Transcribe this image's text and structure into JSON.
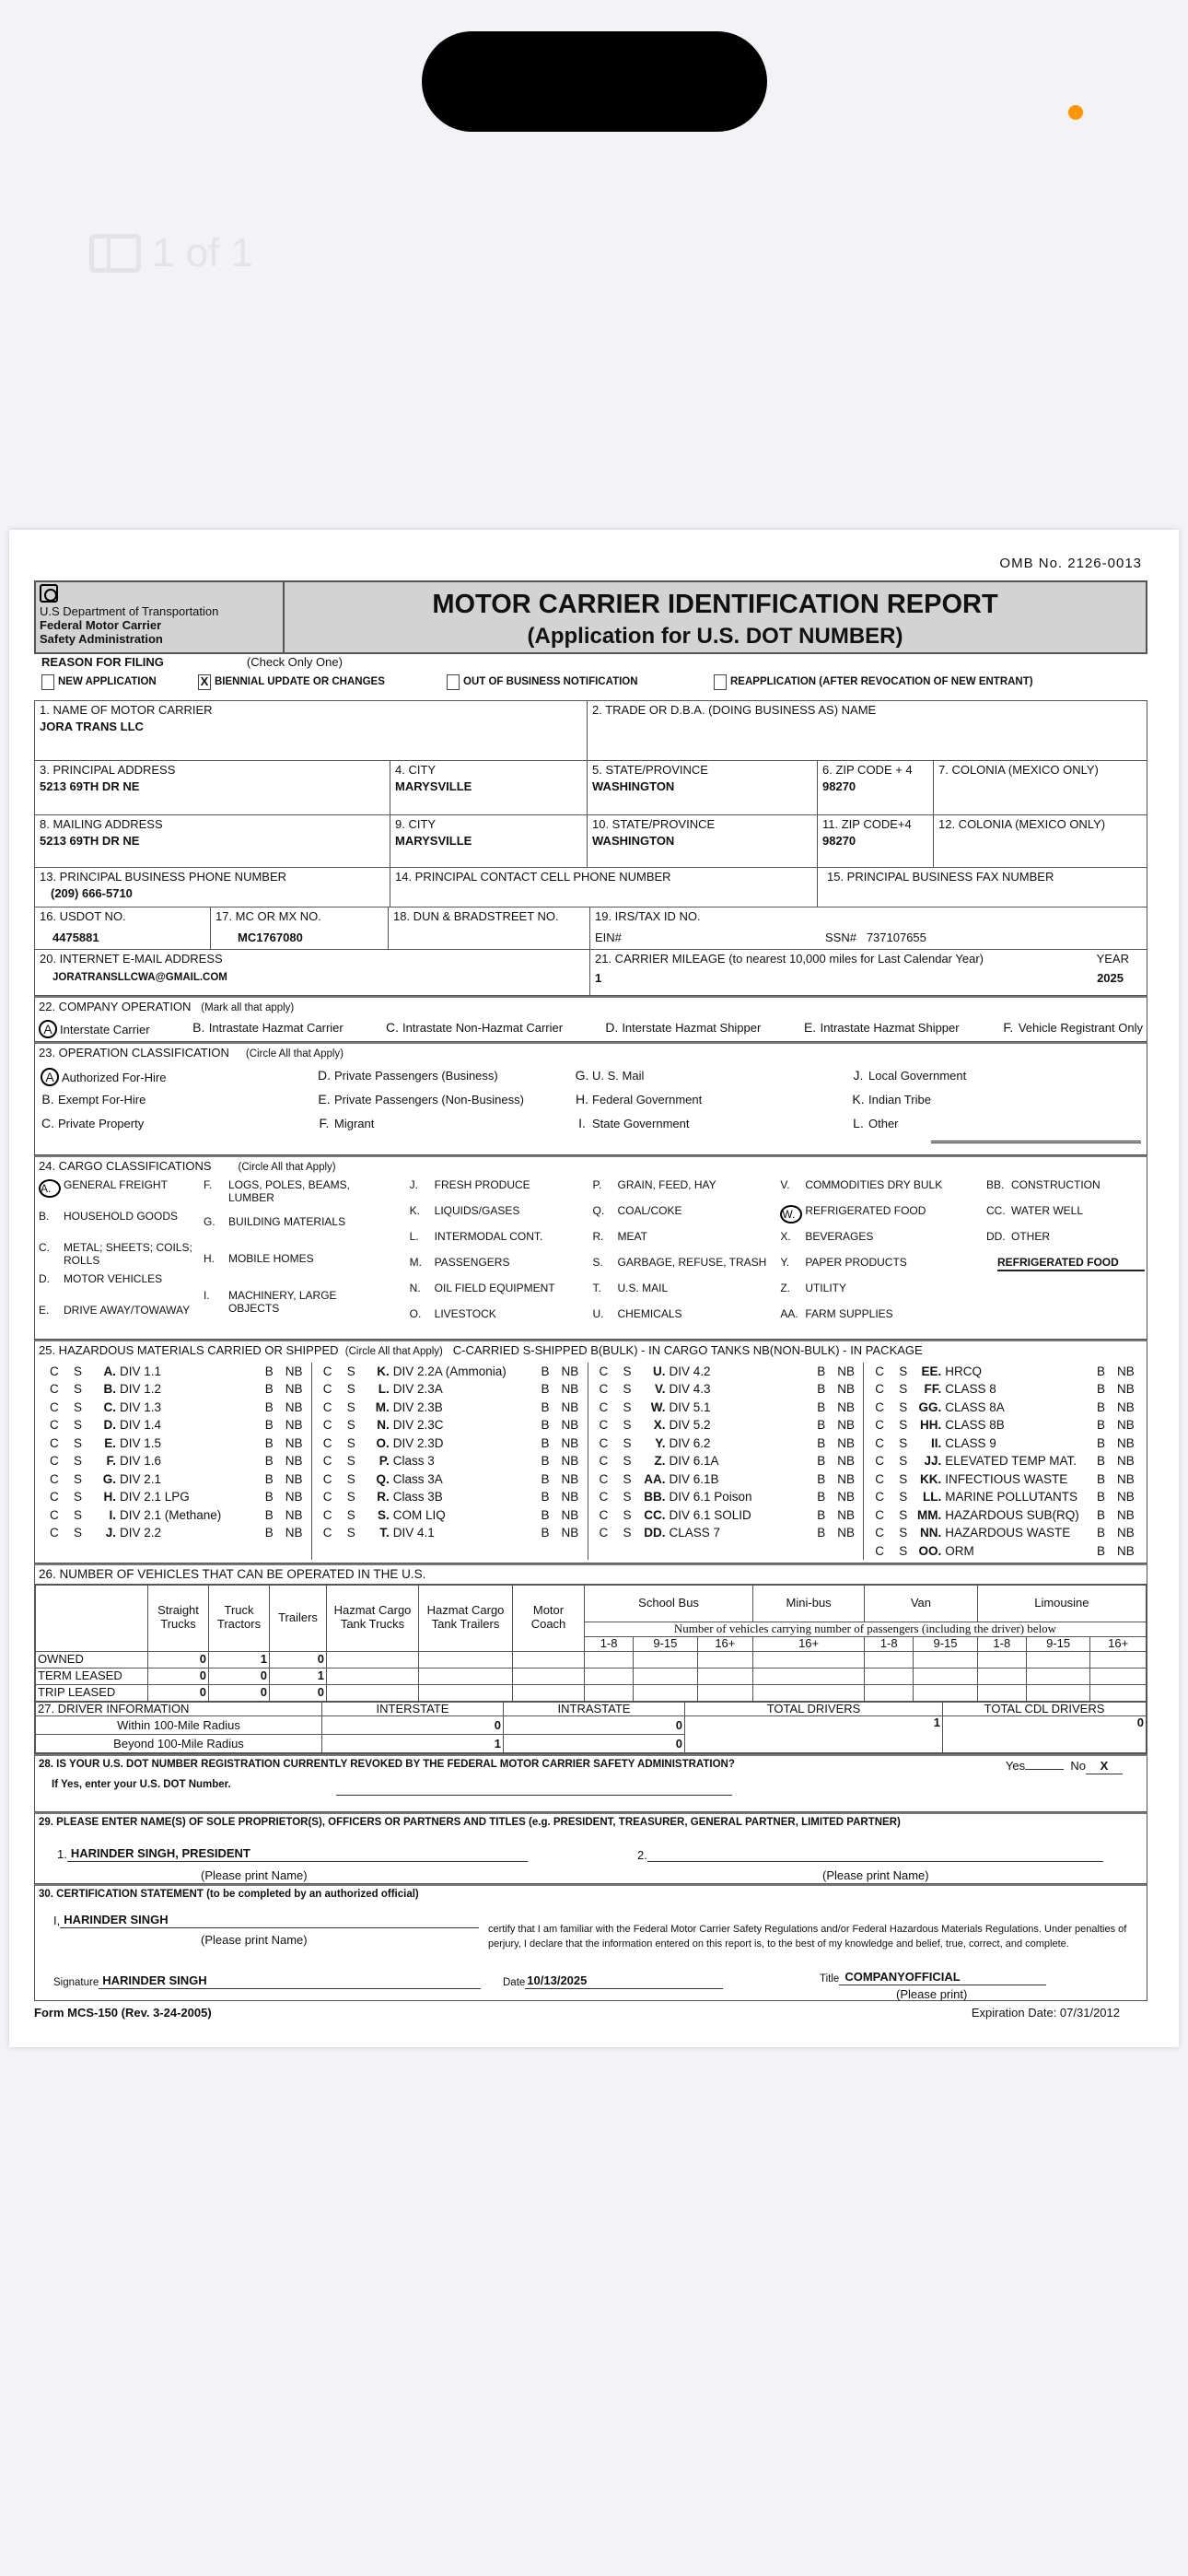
{
  "viewer": {
    "page_indicator": "1 of 1",
    "accent_dot_color": "#ff9500"
  },
  "omb": "OMB No. 2126-0013",
  "header": {
    "dept": [
      "U.S Department of Transportation",
      "Federal Motor Carrier",
      "Safety Administration"
    ],
    "title": "MOTOR CARRIER IDENTIFICATION REPORT",
    "subtitle": "(Application for U.S. DOT NUMBER)"
  },
  "reason": {
    "label": "REASON FOR FILING",
    "note": "(Check Only One)",
    "options": [
      {
        "label": "NEW APPLICATION",
        "mark": ""
      },
      {
        "label": "BIENNIAL UPDATE OR CHANGES",
        "mark": "X"
      },
      {
        "label": "OUT OF BUSINESS NOTIFICATION",
        "mark": ""
      },
      {
        "label": "REAPPLICATION (AFTER REVOCATION OF NEW ENTRANT)",
        "mark": ""
      }
    ]
  },
  "f1": {
    "label": "1. NAME OF MOTOR CARRIER",
    "value": "JORA TRANS LLC"
  },
  "f2": {
    "label": "2. TRADE OR D.B.A. (DOING BUSINESS AS) NAME",
    "value": ""
  },
  "f3": {
    "label": "3. PRINCIPAL ADDRESS",
    "value": "5213 69TH DR NE"
  },
  "f4": {
    "label": "4. CITY",
    "value": "MARYSVILLE"
  },
  "f5": {
    "label": "5. STATE/PROVINCE",
    "value": "WASHINGTON"
  },
  "f6": {
    "label": "6. ZIP CODE + 4",
    "value": "98270"
  },
  "f7": {
    "label": "7. COLONIA (MEXICO ONLY)",
    "value": ""
  },
  "f8": {
    "label": "8. MAILING ADDRESS",
    "value": "5213 69TH DR NE"
  },
  "f9": {
    "label": "9. CITY",
    "value": "MARYSVILLE"
  },
  "f10": {
    "label": "10. STATE/PROVINCE",
    "value": "WASHINGTON"
  },
  "f11": {
    "label": "11. ZIP CODE+4",
    "value": "98270"
  },
  "f12": {
    "label": "12. COLONIA (MEXICO ONLY)",
    "value": ""
  },
  "f13": {
    "label": "13. PRINCIPAL BUSINESS PHONE NUMBER",
    "value": "(209) 666-5710"
  },
  "f14": {
    "label": "14. PRINCIPAL CONTACT CELL PHONE NUMBER",
    "value": ""
  },
  "f15": {
    "label": "15. PRINCIPAL BUSINESS FAX NUMBER",
    "value": ""
  },
  "f16": {
    "label": "16. USDOT NO.",
    "value": "4475881"
  },
  "f17": {
    "label": "17. MC OR MX NO.",
    "value": "MC1767080"
  },
  "f18": {
    "label": "18. DUN & BRADSTREET NO.",
    "value": ""
  },
  "f19": {
    "label": "19. IRS/TAX ID NO.",
    "ein_label": "EIN#",
    "ein": "",
    "ssn_label": "SSN#",
    "ssn": "737107655"
  },
  "f20": {
    "label": "20. INTERNET E-MAIL ADDRESS",
    "value": "JORATRANSLLCWA@GMAIL.COM"
  },
  "f21": {
    "label": "21. CARRIER MILEAGE (to nearest 10,000 miles for Last Calendar Year)",
    "year_label": "YEAR",
    "value": "1",
    "year": "2025"
  },
  "s22": {
    "title": "22. COMPANY OPERATION",
    "note": "(Mark all that apply)",
    "options": [
      {
        "letter": "A",
        "label": "Interstate Carrier",
        "circled": true
      },
      {
        "letter": "B.",
        "label": "Intrastate Hazmat Carrier",
        "circled": false
      },
      {
        "letter": "C.",
        "label": "Intrastate Non-Hazmat Carrier",
        "circled": false
      },
      {
        "letter": "D.",
        "label": "Interstate Hazmat Shipper",
        "circled": false
      },
      {
        "letter": "E.",
        "label": "Intrastate Hazmat Shipper",
        "circled": false
      },
      {
        "letter": "F.",
        "label": "Vehicle Registrant Only",
        "circled": false
      }
    ]
  },
  "s23": {
    "title": "23. OPERATION CLASSIFICATION",
    "note": "(Circle All that Apply)",
    "options": [
      {
        "letter": "A",
        "label": "Authorized For-Hire",
        "circled": true
      },
      {
        "letter": "B.",
        "label": "Exempt For-Hire",
        "circled": false
      },
      {
        "letter": "C.",
        "label": "Private Property",
        "circled": false
      },
      {
        "letter": "D.",
        "label": "Private Passengers (Business)",
        "circled": false
      },
      {
        "letter": "E.",
        "label": "Private Passengers (Non-Business)",
        "circled": false
      },
      {
        "letter": "F.",
        "label": "Migrant",
        "circled": false
      },
      {
        "letter": "G.",
        "label": "U. S. Mail",
        "circled": false
      },
      {
        "letter": "H.",
        "label": "Federal Government",
        "circled": false
      },
      {
        "letter": "I.",
        "label": "State Government",
        "circled": false
      },
      {
        "letter": "J.",
        "label": "Local Government",
        "circled": false
      },
      {
        "letter": "K.",
        "label": "Indian Tribe",
        "circled": false
      },
      {
        "letter": "L.",
        "label": "Other",
        "circled": false
      }
    ]
  },
  "s24": {
    "title": "24. CARGO CLASSIFICATIONS",
    "note": "(Circle All that Apply)",
    "other_value": "REFRIGERATED FOOD",
    "columns": [
      [
        {
          "letter": "A.",
          "label": "GENERAL FREIGHT",
          "circled": true
        },
        {
          "letter": "B.",
          "label": "HOUSEHOLD GOODS"
        },
        {
          "letter": "C.",
          "label": "METAL; SHEETS; COILS; ROLLS"
        },
        {
          "letter": "D.",
          "label": "MOTOR VEHICLES"
        },
        {
          "letter": "E.",
          "label": "DRIVE AWAY/TOWAWAY"
        }
      ],
      [
        {
          "letter": "F.",
          "label": "LOGS, POLES, BEAMS, LUMBER"
        },
        {
          "letter": "G.",
          "label": "BUILDING MATERIALS"
        },
        {
          "letter": "H.",
          "label": "MOBILE HOMES"
        },
        {
          "letter": "I.",
          "label": "MACHINERY, LARGE OBJECTS"
        }
      ],
      [
        {
          "letter": "J.",
          "label": "FRESH PRODUCE"
        },
        {
          "letter": "K.",
          "label": "LIQUIDS/GASES"
        },
        {
          "letter": "L.",
          "label": "INTERMODAL CONT."
        },
        {
          "letter": "M.",
          "label": "PASSENGERS"
        },
        {
          "letter": "N.",
          "label": "OIL FIELD EQUIPMENT"
        },
        {
          "letter": "O.",
          "label": "LIVESTOCK"
        }
      ],
      [
        {
          "letter": "P.",
          "label": "GRAIN, FEED, HAY"
        },
        {
          "letter": "Q.",
          "label": "COAL/COKE"
        },
        {
          "letter": "R.",
          "label": "MEAT"
        },
        {
          "letter": "S.",
          "label": "GARBAGE, REFUSE, TRASH"
        },
        {
          "letter": "T.",
          "label": "U.S. MAIL"
        },
        {
          "letter": "U.",
          "label": "CHEMICALS"
        }
      ],
      [
        {
          "letter": "V.",
          "label": "COMMODITIES DRY BULK"
        },
        {
          "letter": "W.",
          "label": "REFRIGERATED FOOD",
          "circled": true
        },
        {
          "letter": "X.",
          "label": "BEVERAGES"
        },
        {
          "letter": "Y.",
          "label": "PAPER PRODUCTS"
        },
        {
          "letter": "Z.",
          "label": "UTILITY"
        },
        {
          "letter": "AA.",
          "label": "FARM SUPPLIES"
        }
      ],
      [
        {
          "letter": "BB.",
          "label": "CONSTRUCTION"
        },
        {
          "letter": "CC.",
          "label": "WATER WELL"
        },
        {
          "letter": "DD.",
          "label": "OTHER"
        }
      ]
    ]
  },
  "s25": {
    "title": "25. HAZARDOUS MATERIALS CARRIED OR SHIPPED",
    "note": "(Circle All that Apply)",
    "legend": "C-CARRIED  S-SHIPPED  B(BULK) - IN CARGO TANKS  NB(NON-BULK) - IN PACKAGE",
    "c": "C",
    "s": "S",
    "b": "B",
    "nb": "NB",
    "columns": [
      [
        [
          "A.",
          "DIV 1.1"
        ],
        [
          "B.",
          "DIV 1.2"
        ],
        [
          "C.",
          "DIV 1.3"
        ],
        [
          "D.",
          "DIV 1.4"
        ],
        [
          "E.",
          "DIV 1.5"
        ],
        [
          "F.",
          "DIV 1.6"
        ],
        [
          "G.",
          "DIV 2.1"
        ],
        [
          "H.",
          "DIV 2.1 LPG"
        ],
        [
          "I.",
          "DIV 2.1 (Methane)"
        ],
        [
          "J.",
          "DIV 2.2"
        ]
      ],
      [
        [
          "K.",
          "DIV 2.2A (Ammonia)"
        ],
        [
          "L.",
          "DIV 2.3A"
        ],
        [
          "M.",
          "DIV 2.3B"
        ],
        [
          "N.",
          "DIV 2.3C"
        ],
        [
          "O.",
          "DIV 2.3D"
        ],
        [
          "P.",
          "Class 3"
        ],
        [
          "Q.",
          "Class 3A"
        ],
        [
          "R.",
          "Class 3B"
        ],
        [
          "S.",
          "COM LIQ"
        ],
        [
          "T.",
          "DIV 4.1"
        ]
      ],
      [
        [
          "U.",
          "DIV 4.2"
        ],
        [
          "V.",
          "DIV 4.3"
        ],
        [
          "W.",
          "DIV 5.1"
        ],
        [
          "X.",
          "DIV 5.2"
        ],
        [
          "Y.",
          "DIV 6.2"
        ],
        [
          "Z.",
          "DIV 6.1A"
        ],
        [
          "AA.",
          "DIV 6.1B"
        ],
        [
          "BB.",
          "DIV 6.1 Poison"
        ],
        [
          "CC.",
          "DIV 6.1 SOLID"
        ],
        [
          "DD.",
          "CLASS 7"
        ]
      ],
      [
        [
          "EE.",
          "HRCQ"
        ],
        [
          "FF.",
          "CLASS 8"
        ],
        [
          "GG.",
          "CLASS 8A"
        ],
        [
          "HH.",
          "CLASS 8B"
        ],
        [
          "II.",
          "CLASS 9"
        ],
        [
          "JJ.",
          "ELEVATED TEMP MAT."
        ],
        [
          "KK.",
          "INFECTIOUS WASTE"
        ],
        [
          "LL.",
          "MARINE POLLUTANTS"
        ],
        [
          "MM.",
          "HAZARDOUS SUB(RQ)"
        ],
        [
          "NN.",
          "HAZARDOUS WASTE"
        ],
        [
          "OO.",
          "ORM"
        ]
      ]
    ]
  },
  "s26": {
    "title": "26. NUMBER OF VEHICLES THAT CAN BE OPERATED IN THE U.S.",
    "cols": [
      "Straight Trucks",
      "Truck Tractors",
      "Trailers",
      "Hazmat Cargo Tank Trucks",
      "Hazmat Cargo Tank Trailers",
      "Motor Coach"
    ],
    "groups": [
      "School Bus",
      "Mini-bus",
      "Van",
      "Limousine"
    ],
    "passenger_note": "Number of vehicles carrying number of passengers (including the driver) below",
    "sub": [
      "1-8",
      "9-15",
      "16+",
      "16+",
      "1-8",
      "9-15",
      "1-8",
      "9-15",
      "16+"
    ],
    "rows": [
      {
        "label": "OWNED",
        "values": [
          "0",
          "1",
          "0"
        ]
      },
      {
        "label": "TERM LEASED",
        "values": [
          "0",
          "0",
          "1"
        ]
      },
      {
        "label": "TRIP LEASED",
        "values": [
          "0",
          "0",
          "0"
        ]
      }
    ]
  },
  "s27": {
    "title": "27. DRIVER INFORMATION",
    "interstate": "INTERSTATE",
    "intrastate": "INTRASTATE",
    "total": "TOTAL DRIVERS",
    "cdl": "TOTAL CDL DRIVERS",
    "rows": [
      {
        "label": "Within 100-Mile Radius",
        "inter": "0",
        "intra": "0"
      },
      {
        "label": "Beyond 100-Mile Radius",
        "inter": "1",
        "intra": "0"
      }
    ],
    "total_value": "1",
    "cdl_value": "0"
  },
  "s28": {
    "question": "28. IS YOUR U.S. DOT NUMBER REGISTRATION CURRENTLY REVOKED BY THE FEDERAL MOTOR CARRIER SAFETY ADMINISTRATION?",
    "yes": "Yes",
    "no": "No",
    "no_value": "X",
    "followup": "If Yes, enter your U.S. DOT Number."
  },
  "s29": {
    "title": "29. PLEASE ENTER NAME(S) OF SOLE PROPRIETOR(S), OFFICERS OR PARTNERS AND TITLES (e.g. PRESIDENT, TREASURER, GENERAL PARTNER, LIMITED PARTNER)",
    "n1": "1.",
    "name1": "HARINDER SINGH, PRESIDENT",
    "n2": "2.",
    "name2": "",
    "hint": "(Please print Name)"
  },
  "s30": {
    "title": "30. CERTIFICATION STATEMENT (to be completed by an authorized official)",
    "i": "I,",
    "name": "HARINDER  SINGH",
    "hint": "(Please print Name)",
    "statement": "certify that I am familiar with the Federal Motor Carrier Safety Regulations and/or Federal Hazardous Materials Regulations. Under penalties of perjury, I declare that the information entered on this report is, to the best of my knowledge and belief, true, correct, and complete.",
    "sig_label": "Signature",
    "signature": "HARINDER  SINGH",
    "date_label": "Date",
    "date": "10/13/2025",
    "title_label": "Title",
    "title_value": "COMPANYOFFICIAL",
    "title_hint": "(Please print)"
  },
  "footer": {
    "form": "Form MCS-150 (Rev. 3-24-2005)",
    "expiration": "Expiration Date: 07/31/2012"
  }
}
